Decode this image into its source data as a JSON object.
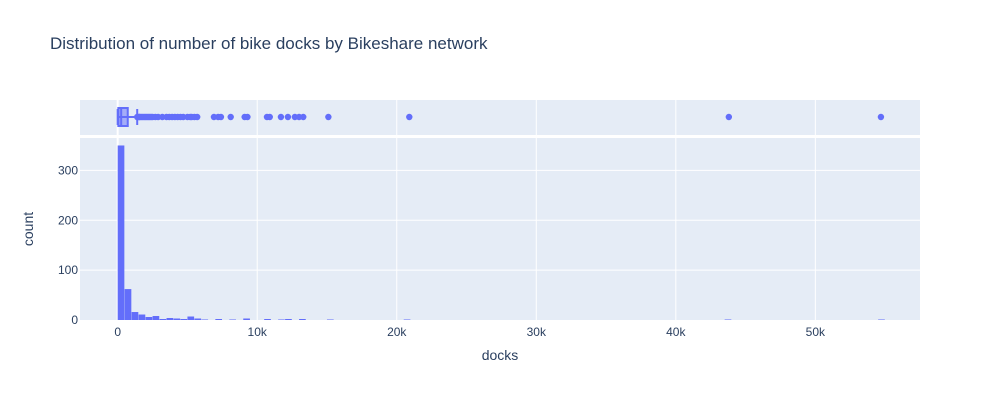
{
  "title": "Distribution of number of bike docks by Bikeshare network",
  "colors": {
    "plot_bg": "#e5ecf6",
    "grid": "#ffffff",
    "bar": "#636efa",
    "text": "#2a3f5f"
  },
  "chart_data": [
    {
      "type": "bar",
      "subtype": "histogram",
      "title": "Distribution of number of bike docks by Bikeshare network",
      "xlabel": "docks",
      "ylabel": "count",
      "xlim": [
        -2700,
        57500
      ],
      "ylim": [
        0,
        365
      ],
      "grid": true,
      "x_ticks": [
        {
          "value": 0,
          "label": "0"
        },
        {
          "value": 10000,
          "label": "10k"
        },
        {
          "value": 20000,
          "label": "20k"
        },
        {
          "value": 30000,
          "label": "30k"
        },
        {
          "value": 40000,
          "label": "40k"
        },
        {
          "value": 50000,
          "label": "50k"
        }
      ],
      "y_ticks": [
        {
          "value": 0,
          "label": "0"
        },
        {
          "value": 100,
          "label": "100"
        },
        {
          "value": 200,
          "label": "200"
        },
        {
          "value": 300,
          "label": "300"
        }
      ],
      "bins": [
        {
          "x0": 0,
          "x1": 500,
          "count": 350
        },
        {
          "x0": 500,
          "x1": 1000,
          "count": 62
        },
        {
          "x0": 1000,
          "x1": 1500,
          "count": 16
        },
        {
          "x0": 1500,
          "x1": 2000,
          "count": 11
        },
        {
          "x0": 2000,
          "x1": 2500,
          "count": 6
        },
        {
          "x0": 2500,
          "x1": 3000,
          "count": 8
        },
        {
          "x0": 3000,
          "x1": 3500,
          "count": 2
        },
        {
          "x0": 3500,
          "x1": 4000,
          "count": 4
        },
        {
          "x0": 4000,
          "x1": 4500,
          "count": 3
        },
        {
          "x0": 4500,
          "x1": 5000,
          "count": 2
        },
        {
          "x0": 5000,
          "x1": 5500,
          "count": 7
        },
        {
          "x0": 5500,
          "x1": 6000,
          "count": 3
        },
        {
          "x0": 6000,
          "x1": 6500,
          "count": 1
        },
        {
          "x0": 7000,
          "x1": 7500,
          "count": 2
        },
        {
          "x0": 8000,
          "x1": 8500,
          "count": 1
        },
        {
          "x0": 9000,
          "x1": 9500,
          "count": 3
        },
        {
          "x0": 10500,
          "x1": 11000,
          "count": 2
        },
        {
          "x0": 11500,
          "x1": 12000,
          "count": 1
        },
        {
          "x0": 12000,
          "x1": 12500,
          "count": 2
        },
        {
          "x0": 13000,
          "x1": 13500,
          "count": 2
        },
        {
          "x0": 15000,
          "x1": 15500,
          "count": 1
        },
        {
          "x0": 20500,
          "x1": 21000,
          "count": 1
        },
        {
          "x0": 43500,
          "x1": 44000,
          "count": 1
        },
        {
          "x0": 54500,
          "x1": 55000,
          "count": 1
        }
      ]
    },
    {
      "type": "box",
      "orientation": "horizontal",
      "xlabel": "docks",
      "quartiles": {
        "min": 0,
        "q1": 120,
        "median": 250,
        "q3": 650,
        "upper_fence": 1400
      },
      "outliers": [
        1400,
        1500,
        1550,
        1600,
        1700,
        1800,
        1900,
        2000,
        2100,
        2200,
        2300,
        2400,
        2500,
        2700,
        2900,
        3200,
        3500,
        3700,
        3900,
        4100,
        4300,
        4500,
        4700,
        5000,
        5200,
        5300,
        5500,
        5700,
        6900,
        7200,
        7400,
        8100,
        9100,
        9300,
        10700,
        10900,
        11700,
        12200,
        12700,
        13000,
        13300,
        15100,
        20900,
        43800,
        54700
      ]
    }
  ]
}
